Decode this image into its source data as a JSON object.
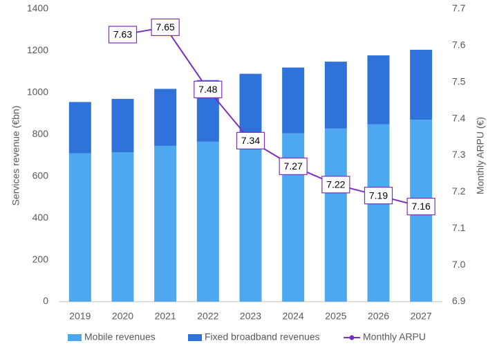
{
  "chart_data": {
    "type": "bar",
    "stacked": true,
    "categories": [
      "2019",
      "2020",
      "2021",
      "2022",
      "2023",
      "2024",
      "2025",
      "2026",
      "2027"
    ],
    "series": [
      {
        "name": "Mobile revenues",
        "type": "bar",
        "color": "#4da8f0",
        "values": [
          710,
          715,
          745,
          765,
          785,
          805,
          828,
          848,
          870
        ]
      },
      {
        "name": "Fixed broadband revenues",
        "type": "bar",
        "color": "#2f72d9",
        "values": [
          245,
          255,
          273,
          295,
          305,
          315,
          320,
          330,
          335
        ]
      },
      {
        "name": "Monthly ARPU",
        "type": "line",
        "axis": "y2",
        "color": "#7b2fbe",
        "values": [
          null,
          7.63,
          7.65,
          7.48,
          7.34,
          7.27,
          7.22,
          7.19,
          7.16
        ]
      }
    ],
    "ylabel": "Services revenue (€bn)",
    "y2label": "Monthly ARPU (€)",
    "ylim": [
      0,
      1400
    ],
    "yticks": [
      0,
      200,
      400,
      600,
      800,
      1000,
      1200,
      1400
    ],
    "y2lim": [
      6.9,
      7.7
    ],
    "y2ticks": [
      6.9,
      {
        "value": 7,
        "label": "7.0"
      },
      7.1,
      7.2,
      7.3,
      7.4,
      7.5,
      7.6,
      7.7
    ],
    "grid": false,
    "legend": "bottom"
  }
}
